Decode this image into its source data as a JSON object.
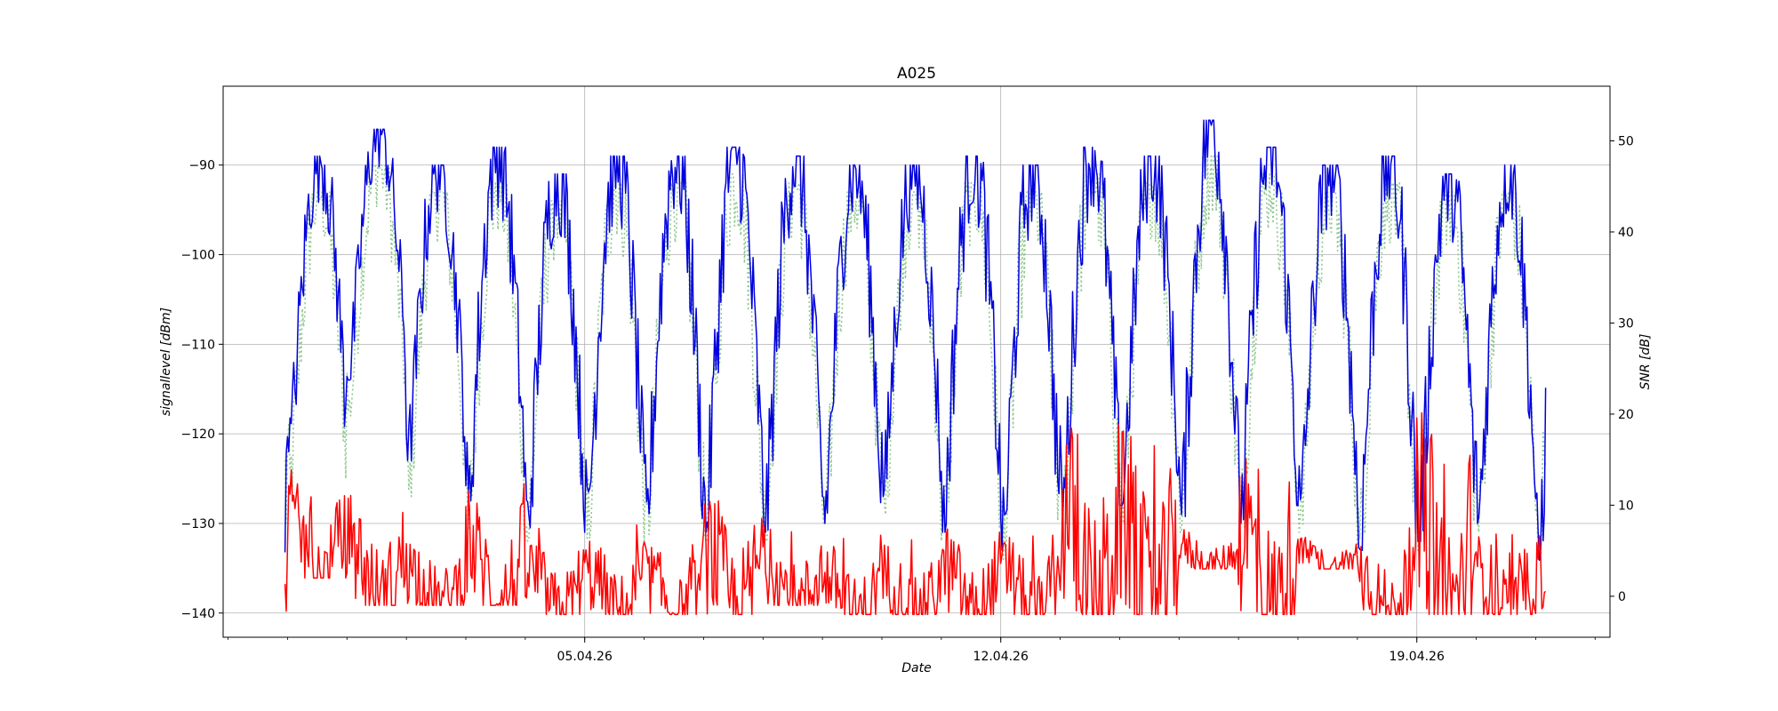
{
  "chart_data": {
    "type": "line",
    "title": "A025",
    "xlabel": "Date",
    "ylabel_left": "signallevel [dBm]",
    "ylabel_right": "SNR [dB]",
    "x_ticks": [
      "05.04.26",
      "12.04.26",
      "19.04.26"
    ],
    "x_tick_dates": [
      "2026-04-05",
      "2026-04-12",
      "2026-04-19"
    ],
    "xlim": [
      "2026-03-29T22:00",
      "2026-04-22T06:00"
    ],
    "data_range": [
      "2026-03-30T23:00",
      "2026-04-21T04:00"
    ],
    "y_left": {
      "lim": [
        -142.7,
        -81.2
      ],
      "ticks": [
        -90,
        -100,
        -110,
        -120,
        -130,
        -140
      ]
    },
    "y_right": {
      "lim": [
        -4.5,
        56
      ],
      "ticks": [
        50,
        40,
        30,
        20,
        10,
        0
      ]
    },
    "grid": true,
    "series": [
      {
        "axis": "left",
        "color": "#0000dd",
        "style": "solid",
        "days": [
          {
            "date": "2026-03-31",
            "min": -122,
            "max": -89
          },
          {
            "date": "2026-04-01",
            "min": -114,
            "max": -86
          },
          {
            "date": "2026-04-02",
            "min": -123,
            "max": -90
          },
          {
            "date": "2026-04-03",
            "min": -129,
            "max": -88
          },
          {
            "date": "2026-04-04",
            "min": -131,
            "max": -91
          },
          {
            "date": "2026-04-05",
            "min": -131,
            "max": -89
          },
          {
            "date": "2026-04-06",
            "min": -131,
            "max": -89
          },
          {
            "date": "2026-04-07",
            "min": -131,
            "max": -88
          },
          {
            "date": "2026-04-08",
            "min": -131,
            "max": -89
          },
          {
            "date": "2026-04-09",
            "min": -130,
            "max": -90
          },
          {
            "date": "2026-04-10",
            "min": -127,
            "max": -90
          },
          {
            "date": "2026-04-11",
            "min": -131,
            "max": -89
          },
          {
            "date": "2026-04-12",
            "min": -133,
            "max": -90
          },
          {
            "date": "2026-04-13",
            "min": -130,
            "max": -88
          },
          {
            "date": "2026-04-14",
            "min": -128,
            "max": -89
          },
          {
            "date": "2026-04-15",
            "min": -130,
            "max": -85
          },
          {
            "date": "2026-04-16",
            "min": -130,
            "max": -88
          },
          {
            "date": "2026-04-17",
            "min": -130,
            "max": -90
          },
          {
            "date": "2026-04-18",
            "min": -133,
            "max": -89
          },
          {
            "date": "2026-04-19",
            "min": -132,
            "max": -91
          },
          {
            "date": "2026-04-20",
            "min": -130,
            "max": -90
          },
          {
            "date": "2026-04-21",
            "min": -136,
            "max": -91
          }
        ]
      },
      {
        "axis": "left",
        "color": "#90c890",
        "style": "dotted",
        "days": [
          {
            "date": "2026-03-31",
            "min": -126,
            "max": -93
          },
          {
            "date": "2026-04-01",
            "min": -118,
            "max": -90
          },
          {
            "date": "2026-04-02",
            "min": -127,
            "max": -93
          },
          {
            "date": "2026-04-03",
            "min": -131,
            "max": -92
          },
          {
            "date": "2026-04-04",
            "min": -132,
            "max": -94
          },
          {
            "date": "2026-04-05",
            "min": -132,
            "max": -92
          },
          {
            "date": "2026-04-06",
            "min": -132,
            "max": -92
          },
          {
            "date": "2026-04-07",
            "min": -132,
            "max": -91
          },
          {
            "date": "2026-04-08",
            "min": -132,
            "max": -92
          },
          {
            "date": "2026-04-09",
            "min": -131,
            "max": -93
          },
          {
            "date": "2026-04-10",
            "min": -129,
            "max": -93
          },
          {
            "date": "2026-04-11",
            "min": -132,
            "max": -92
          },
          {
            "date": "2026-04-12",
            "min": -134,
            "max": -93
          },
          {
            "date": "2026-04-13",
            "min": -131,
            "max": -91
          },
          {
            "date": "2026-04-14",
            "min": -130,
            "max": -92
          },
          {
            "date": "2026-04-15",
            "min": -131,
            "max": -89
          },
          {
            "date": "2026-04-16",
            "min": -131,
            "max": -91
          },
          {
            "date": "2026-04-17",
            "min": -131,
            "max": -93
          },
          {
            "date": "2026-04-18",
            "min": -134,
            "max": -92
          },
          {
            "date": "2026-04-19",
            "min": -133,
            "max": -93
          },
          {
            "date": "2026-04-20",
            "min": -131,
            "max": -93
          },
          {
            "date": "2026-04-21",
            "min": -134,
            "max": -94
          }
        ]
      },
      {
        "axis": "right",
        "color": "#ff0000",
        "style": "solid",
        "days": [
          {
            "date": "2026-03-31",
            "min": 2,
            "max": 14
          },
          {
            "date": "2026-04-01",
            "min": -1,
            "max": 13
          },
          {
            "date": "2026-04-02",
            "min": -1,
            "max": 8
          },
          {
            "date": "2026-04-03",
            "min": -1,
            "max": 13
          },
          {
            "date": "2026-04-04",
            "min": -2,
            "max": 8
          },
          {
            "date": "2026-04-05",
            "min": -2,
            "max": 8
          },
          {
            "date": "2026-04-06",
            "min": -2,
            "max": 7
          },
          {
            "date": "2026-04-07",
            "min": -2,
            "max": 14
          },
          {
            "date": "2026-04-08",
            "min": -1,
            "max": 9
          },
          {
            "date": "2026-04-09",
            "min": -2,
            "max": 7
          },
          {
            "date": "2026-04-10",
            "min": -2,
            "max": 7
          },
          {
            "date": "2026-04-11",
            "min": -2,
            "max": 9
          },
          {
            "date": "2026-04-12",
            "min": -2,
            "max": 8
          },
          {
            "date": "2026-04-13",
            "min": -2,
            "max": 23
          },
          {
            "date": "2026-04-14",
            "min": -2,
            "max": 21
          },
          {
            "date": "2026-04-15",
            "min": 3,
            "max": 8
          },
          {
            "date": "2026-04-16",
            "min": -2,
            "max": 20
          },
          {
            "date": "2026-04-17",
            "min": 3,
            "max": 7
          },
          {
            "date": "2026-04-18",
            "min": -2,
            "max": 8
          },
          {
            "date": "2026-04-19",
            "min": -2,
            "max": 23
          },
          {
            "date": "2026-04-20",
            "min": -2,
            "max": 8
          },
          {
            "date": "2026-04-21",
            "min": -2,
            "max": 8
          }
        ]
      }
    ]
  }
}
